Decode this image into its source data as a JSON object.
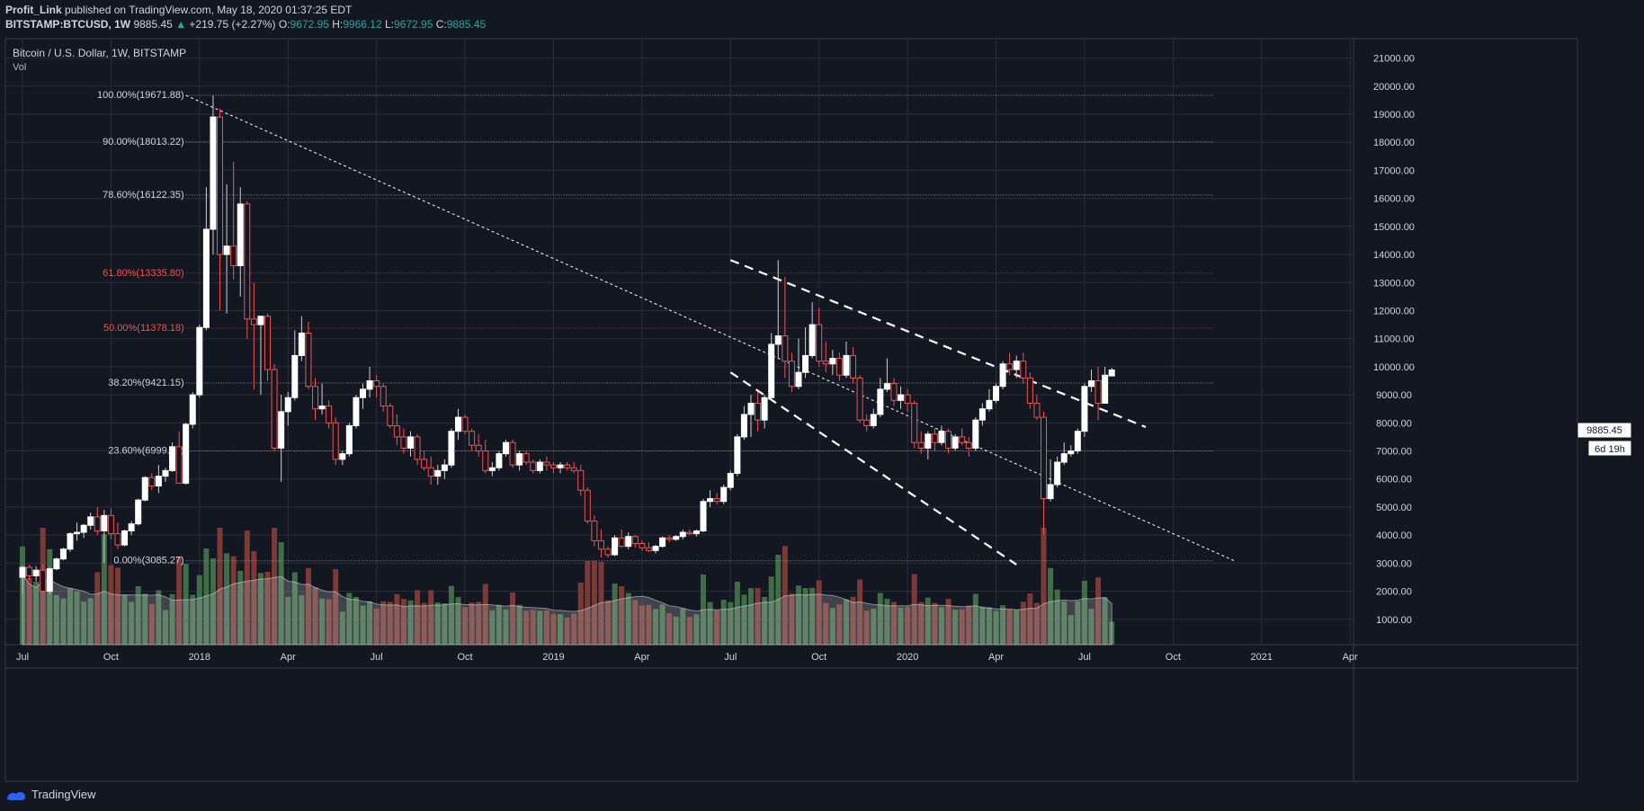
{
  "header": {
    "author": "Profit_Link",
    "published": "published on TradingView.com, May 18, 2020 01:37:25 EDT",
    "symbol": "BITSTAMP:BTCUSD, 1W",
    "last": "9885.45",
    "arrow": "▲",
    "change": "+219.75 (+2.27%)",
    "o_label": "O:",
    "o_val": "9672.95",
    "h_label": "H:",
    "h_val": "9966.12",
    "l_label": "L:",
    "l_val": "9672.95",
    "c_label": "C:",
    "c_val": "9885.45"
  },
  "legend": {
    "title": "Bitcoin / U.S. Dollar, 1W, BITSTAMP",
    "vol": "Vol"
  },
  "price_label": {
    "value": "9885.45",
    "countdown": "6d 19h"
  },
  "footer": {
    "brand": "TradingView"
  },
  "colors": {
    "bg": "#131722",
    "grid": "#2a2e39",
    "up": "#ffffff",
    "down": "#ef5350",
    "vol_up": "#3f6d47",
    "vol_down": "#7b3a36",
    "fib": "#d1d4dc",
    "fib_red": "#ef5350"
  },
  "chart_data": {
    "type": "candlestick",
    "title": "Bitcoin / U.S. Dollar, 1W, BITSTAMP",
    "y_ticks": [
      1000,
      2000,
      3000,
      4000,
      5000,
      6000,
      7000,
      8000,
      9000,
      10000,
      11000,
      12000,
      13000,
      14000,
      15000,
      16000,
      17000,
      18000,
      19000,
      20000,
      21000
    ],
    "y_tick_labels": [
      "1000.00",
      "2000.00",
      "3000.00",
      "4000.00",
      "5000.00",
      "6000.00",
      "7000.00",
      "8000.00",
      "9000.00",
      "10000.00",
      "11000.00",
      "12000.00",
      "13000.00",
      "14000.00",
      "15000.00",
      "16000.00",
      "17000.00",
      "18000.00",
      "19000.00",
      "20000.00",
      "21000.00"
    ],
    "x_tick_labels": [
      "Jul",
      "Oct",
      "2018",
      "Apr",
      "Jul",
      "Oct",
      "2019",
      "Apr",
      "Jul",
      "Oct",
      "2020",
      "Apr",
      "Jul",
      "Oct",
      "2021",
      "Apr"
    ],
    "x_tick_weeks": [
      0,
      13,
      26,
      39,
      52,
      65,
      78,
      91,
      104,
      117,
      130,
      143,
      156,
      169,
      182,
      195
    ],
    "fib_levels": [
      {
        "label": "100.00%(19671.88)",
        "value": 19671.88,
        "red": false
      },
      {
        "label": "90.00%(18013.22)",
        "value": 18013.22,
        "red": false
      },
      {
        "label": "78.60%(16122.35)",
        "value": 16122.35,
        "red": false
      },
      {
        "label": "61.80%(13335.80)",
        "value": 13335.8,
        "red": true
      },
      {
        "label": "50.00%(11378.18)",
        "value": 11378.18,
        "red": true
      },
      {
        "label": "38.20%(9421.15)",
        "value": 9421.15,
        "red": false
      },
      {
        "label": "23.60%(6999.71)",
        "value": 6999.71,
        "red": false
      },
      {
        "label": "0.00%(3085.27)",
        "value": 3085.27,
        "red": false
      }
    ],
    "trendlines": [
      {
        "style": "dotted",
        "from": [
          24,
          19671
        ],
        "to": [
          178,
          3085
        ]
      },
      {
        "style": "dashed",
        "from": [
          104,
          13800
        ],
        "to": [
          165,
          7850
        ]
      },
      {
        "style": "dashed",
        "from": [
          104,
          9800
        ],
        "to": [
          146,
          2950
        ]
      }
    ],
    "ohlc": [
      [
        2500,
        2900,
        1900,
        2850
      ],
      [
        2850,
        2950,
        2400,
        2550
      ],
      [
        2550,
        2900,
        2350,
        2750
      ],
      [
        2750,
        2950,
        1950,
        2000
      ],
      [
        2000,
        2850,
        1900,
        2800
      ],
      [
        2800,
        3200,
        2750,
        3150
      ],
      [
        3150,
        3550,
        3100,
        3500
      ],
      [
        3500,
        4100,
        3400,
        4050
      ],
      [
        4050,
        4450,
        3800,
        4100
      ],
      [
        4100,
        4400,
        3900,
        4350
      ],
      [
        4350,
        4800,
        4200,
        4650
      ],
      [
        4650,
        5000,
        4000,
        4150
      ],
      [
        4150,
        4900,
        3000,
        4700
      ],
      [
        4700,
        4950,
        3850,
        4050
      ],
      [
        4050,
        4450,
        3500,
        3650
      ],
      [
        3650,
        4200,
        3600,
        4150
      ],
      [
        4150,
        4500,
        4000,
        4400
      ],
      [
        4400,
        5300,
        4350,
        5250
      ],
      [
        5250,
        6100,
        5200,
        6050
      ],
      [
        6050,
        6200,
        5600,
        5750
      ],
      [
        5750,
        6500,
        5500,
        6100
      ],
      [
        6100,
        6400,
        5900,
        6300
      ],
      [
        6300,
        7300,
        6250,
        7150
      ],
      [
        7150,
        7700,
        5900,
        5850
      ],
      [
        5850,
        8000,
        5800,
        7950
      ],
      [
        7950,
        9100,
        7800,
        9000
      ],
      [
        9000,
        11500,
        8900,
        11400
      ],
      [
        11400,
        16400,
        11300,
        14900
      ],
      [
        14900,
        19671,
        14000,
        18900
      ],
      [
        18900,
        19200,
        12000,
        14000
      ],
      [
        14000,
        16500,
        11900,
        14300
      ],
      [
        14300,
        17300,
        13100,
        13600
      ],
      [
        13600,
        16400,
        12500,
        15800
      ],
      [
        15800,
        15900,
        11000,
        11700
      ],
      [
        11700,
        13000,
        9200,
        11500
      ],
      [
        11500,
        11800,
        9000,
        11800
      ],
      [
        11800,
        11900,
        9500,
        9900
      ],
      [
        9900,
        10100,
        7000,
        7100
      ],
      [
        7100,
        9000,
        5900,
        8400
      ],
      [
        8400,
        9100,
        7900,
        8900
      ],
      [
        8900,
        11300,
        8800,
        10400
      ],
      [
        10400,
        11800,
        10200,
        11200
      ],
      [
        11200,
        11600,
        9200,
        9300
      ],
      [
        9300,
        9600,
        8100,
        8500
      ],
      [
        8500,
        9400,
        8300,
        8600
      ],
      [
        8600,
        8800,
        7800,
        8000
      ],
      [
        8000,
        8200,
        6500,
        6700
      ],
      [
        6700,
        7000,
        6500,
        6900
      ],
      [
        6900,
        8000,
        6800,
        7900
      ],
      [
        7900,
        9000,
        7800,
        8900
      ],
      [
        8900,
        9400,
        8500,
        9200
      ],
      [
        9200,
        10000,
        8900,
        9500
      ],
      [
        9500,
        9700,
        8900,
        9300
      ],
      [
        9300,
        9400,
        8400,
        8600
      ],
      [
        8600,
        8700,
        7800,
        7900
      ],
      [
        7900,
        8300,
        7200,
        7500
      ],
      [
        7500,
        7800,
        6900,
        7100
      ],
      [
        7100,
        7700,
        6800,
        7500
      ],
      [
        7500,
        7600,
        6500,
        6700
      ],
      [
        6700,
        7000,
        6300,
        6400
      ],
      [
        6400,
        6800,
        5800,
        6100
      ],
      [
        6100,
        6500,
        5800,
        6300
      ],
      [
        6300,
        6700,
        6000,
        6500
      ],
      [
        6500,
        7800,
        6400,
        7700
      ],
      [
        7700,
        8500,
        7400,
        8200
      ],
      [
        8200,
        8300,
        7600,
        7700
      ],
      [
        7700,
        7800,
        7000,
        7200
      ],
      [
        7200,
        7600,
        6800,
        7000
      ],
      [
        7000,
        7400,
        6200,
        6300
      ],
      [
        6300,
        6600,
        6100,
        6400
      ],
      [
        6400,
        7000,
        6300,
        6900
      ],
      [
        6900,
        7400,
        6800,
        7300
      ],
      [
        7300,
        7400,
        6400,
        6500
      ],
      [
        6500,
        7000,
        6300,
        6900
      ],
      [
        6900,
        7000,
        6500,
        6600
      ],
      [
        6600,
        6700,
        6200,
        6300
      ],
      [
        6300,
        6700,
        6200,
        6600
      ],
      [
        6600,
        6800,
        6300,
        6500
      ],
      [
        6500,
        6600,
        6200,
        6400
      ],
      [
        6400,
        6600,
        6200,
        6500
      ],
      [
        6500,
        6600,
        6300,
        6400
      ],
      [
        6400,
        6600,
        6200,
        6300
      ],
      [
        6300,
        6500,
        5400,
        5600
      ],
      [
        5600,
        5700,
        4400,
        4500
      ],
      [
        4500,
        4700,
        3600,
        3800
      ],
      [
        3800,
        4200,
        3200,
        3500
      ],
      [
        3500,
        3600,
        3200,
        3300
      ],
      [
        3300,
        4000,
        3250,
        3900
      ],
      [
        3900,
        4200,
        3550,
        3600
      ],
      [
        3600,
        4100,
        3500,
        3950
      ],
      [
        3950,
        4000,
        3550,
        3700
      ],
      [
        3700,
        3800,
        3450,
        3550
      ],
      [
        3550,
        3750,
        3400,
        3450
      ],
      [
        3450,
        3650,
        3350,
        3600
      ],
      [
        3600,
        3950,
        3550,
        3900
      ],
      [
        3900,
        4000,
        3750,
        3850
      ],
      [
        3850,
        4000,
        3800,
        3950
      ],
      [
        3950,
        4200,
        3850,
        4100
      ],
      [
        4100,
        4200,
        4000,
        4050
      ],
      [
        4050,
        4200,
        3950,
        4150
      ],
      [
        4150,
        5300,
        4100,
        5200
      ],
      [
        5200,
        5600,
        5000,
        5300
      ],
      [
        5300,
        5500,
        5100,
        5200
      ],
      [
        5200,
        5800,
        5100,
        5700
      ],
      [
        5700,
        6300,
        5600,
        6200
      ],
      [
        6200,
        7600,
        6100,
        7500
      ],
      [
        7500,
        8600,
        7400,
        8300
      ],
      [
        8300,
        9000,
        7500,
        8700
      ],
      [
        8700,
        9100,
        7700,
        8100
      ],
      [
        8100,
        9000,
        7800,
        8900
      ],
      [
        8900,
        11200,
        8800,
        10800
      ],
      [
        10800,
        13800,
        10300,
        11100
      ],
      [
        11100,
        13200,
        9600,
        10200
      ],
      [
        10200,
        10500,
        9100,
        9300
      ],
      [
        9300,
        11000,
        9200,
        9800
      ],
      [
        9800,
        11400,
        9600,
        10400
      ],
      [
        10400,
        12300,
        10300,
        11500
      ],
      [
        11500,
        12100,
        10000,
        10200
      ],
      [
        10200,
        10900,
        9800,
        10100
      ],
      [
        10100,
        10600,
        9700,
        10300
      ],
      [
        10300,
        10500,
        9500,
        9700
      ],
      [
        9700,
        10900,
        9600,
        10400
      ],
      [
        10400,
        10700,
        9400,
        9600
      ],
      [
        9600,
        9700,
        8000,
        8100
      ],
      [
        8100,
        8300,
        7700,
        7900
      ],
      [
        7900,
        8500,
        7800,
        8300
      ],
      [
        8300,
        9600,
        8200,
        9200
      ],
      [
        9200,
        10300,
        9100,
        9400
      ],
      [
        9400,
        9600,
        8600,
        8800
      ],
      [
        8800,
        9300,
        8500,
        9000
      ],
      [
        9000,
        9200,
        8400,
        8700
      ],
      [
        8700,
        8800,
        7100,
        7300
      ],
      [
        7300,
        7700,
        6900,
        7100
      ],
      [
        7100,
        7700,
        6700,
        7600
      ],
      [
        7600,
        7800,
        7000,
        7300
      ],
      [
        7300,
        7900,
        7200,
        7700
      ],
      [
        7700,
        7800,
        6900,
        7100
      ],
      [
        7100,
        7600,
        7000,
        7500
      ],
      [
        7500,
        7800,
        7200,
        7300
      ],
      [
        7300,
        7500,
        6800,
        7100
      ],
      [
        7100,
        8200,
        7000,
        8100
      ],
      [
        8100,
        8700,
        7900,
        8500
      ],
      [
        8500,
        9200,
        8400,
        8800
      ],
      [
        8800,
        9400,
        8700,
        9300
      ],
      [
        9300,
        10200,
        9200,
        10100
      ],
      [
        10100,
        10500,
        9700,
        9900
      ],
      [
        9900,
        10400,
        9600,
        10200
      ],
      [
        10200,
        10500,
        9400,
        9600
      ],
      [
        9600,
        9800,
        8500,
        8700
      ],
      [
        8700,
        9000,
        8100,
        8200
      ],
      [
        8200,
        8400,
        4000,
        5300
      ],
      [
        5300,
        6700,
        5200,
        5800
      ],
      [
        5800,
        6800,
        5700,
        6600
      ],
      [
        6600,
        7300,
        6500,
        6900
      ],
      [
        6900,
        7200,
        6800,
        7000
      ],
      [
        7000,
        7800,
        6900,
        7700
      ],
      [
        7700,
        9400,
        7500,
        9300
      ],
      [
        9300,
        9900,
        9100,
        9500
      ],
      [
        9500,
        10000,
        8100,
        8700
      ],
      [
        8700,
        10000,
        8700,
        9700
      ],
      [
        9672.95,
        9966.12,
        9672.95,
        9885.45
      ]
    ],
    "volume_note": "Vol histogram in lower pane"
  }
}
